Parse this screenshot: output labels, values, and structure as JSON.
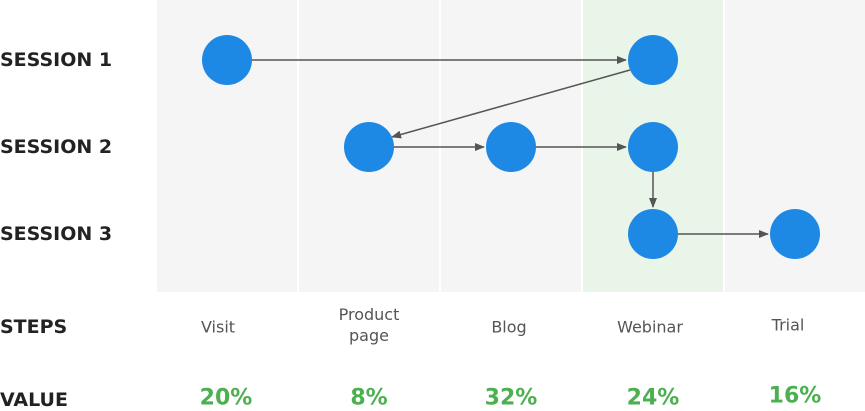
{
  "rows": [
    "SESSION 1",
    "SESSION 2",
    "SESSION 3"
  ],
  "steps_label": "STEPS",
  "value_label": "VALUE",
  "steps": [
    {
      "name": "Visit",
      "value": "20%"
    },
    {
      "name": "Product page",
      "value": "8%"
    },
    {
      "name": "Blog",
      "value": "32%"
    },
    {
      "name": "Webinar",
      "value": "24%"
    },
    {
      "name": "Trial",
      "value": "16%"
    }
  ]
}
